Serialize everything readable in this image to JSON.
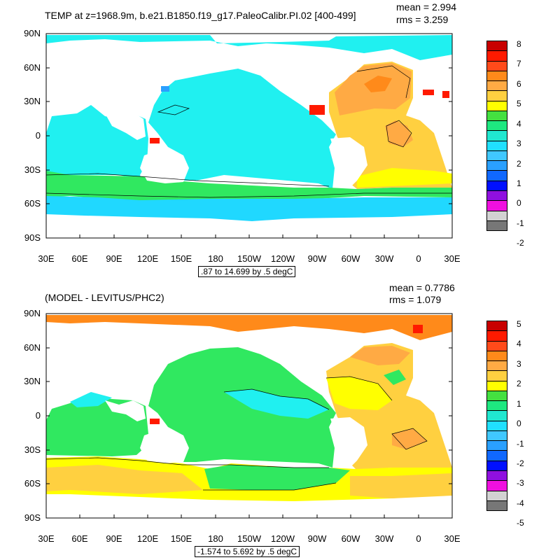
{
  "panels": [
    {
      "title": "TEMP at z=1968.9m, b.e21.B1850.f19_g17.PaleoCalibr.PI.02 [400-499]",
      "mean_text": "mean = 2.994",
      "rms_text": "rms = 3.259",
      "subtitle": ".87 to 14.699 by .5 degC",
      "lat_ticks": [
        "90N",
        "60N",
        "30N",
        "0",
        "30S",
        "60S",
        "90S"
      ],
      "lon_ticks": [
        "30E",
        "60E",
        "90E",
        "120E",
        "150E",
        "180",
        "150W",
        "120W",
        "90W",
        "60W",
        "30W",
        "0",
        "30E"
      ],
      "colorbar": {
        "labels": [
          "8",
          "7",
          "6",
          "5",
          "4",
          "3",
          "2",
          "1",
          "0",
          "-1",
          "-2"
        ],
        "colors": [
          "#c80000",
          "#ff1a00",
          "#ff4a1a",
          "#ff8a1a",
          "#ffaa44",
          "#ffd040",
          "#ffff00",
          "#44e040",
          "#1ee880",
          "#20e8d0",
          "#20e0ff",
          "#40c8ff",
          "#2aa0ff",
          "#1068ff",
          "#0010ff",
          "#9010e0",
          "#f010e0",
          "#d2d2d2",
          "#777777"
        ]
      }
    },
    {
      "title": "(MODEL - LEVITUS/PHC2)",
      "mean_text": "mean = 0.7786",
      "rms_text": "rms = 1.079",
      "subtitle": "-1.574 to 5.692 by .5 degC",
      "lat_ticks": [
        "90N",
        "60N",
        "30N",
        "0",
        "30S",
        "60S",
        "90S"
      ],
      "lon_ticks": [
        "30E",
        "60E",
        "90E",
        "120E",
        "150E",
        "180",
        "150W",
        "120W",
        "90W",
        "60W",
        "30W",
        "0",
        "30E"
      ],
      "colorbar": {
        "labels": [
          "5",
          "4",
          "3",
          "2",
          "1",
          "0",
          "-1",
          "-2",
          "-3",
          "-4",
          "-5"
        ],
        "colors": [
          "#c80000",
          "#ff1a00",
          "#ff4a1a",
          "#ff8a1a",
          "#ffaa44",
          "#ffd040",
          "#ffff00",
          "#44e040",
          "#1ee880",
          "#20e8d0",
          "#20e0ff",
          "#40c8ff",
          "#2aa0ff",
          "#1068ff",
          "#0010ff",
          "#9010e0",
          "#f010e0",
          "#d2d2d2",
          "#777777"
        ]
      }
    }
  ],
  "palette": {
    "cyan": "#20f0f0",
    "light_blue": "#20d8ff",
    "green": "#30e860",
    "orange": "#ffaa44",
    "gold": "#ffd040",
    "yellow": "#ffff00",
    "red": "#ff1a00",
    "deep_orange": "#ff8a1a"
  }
}
